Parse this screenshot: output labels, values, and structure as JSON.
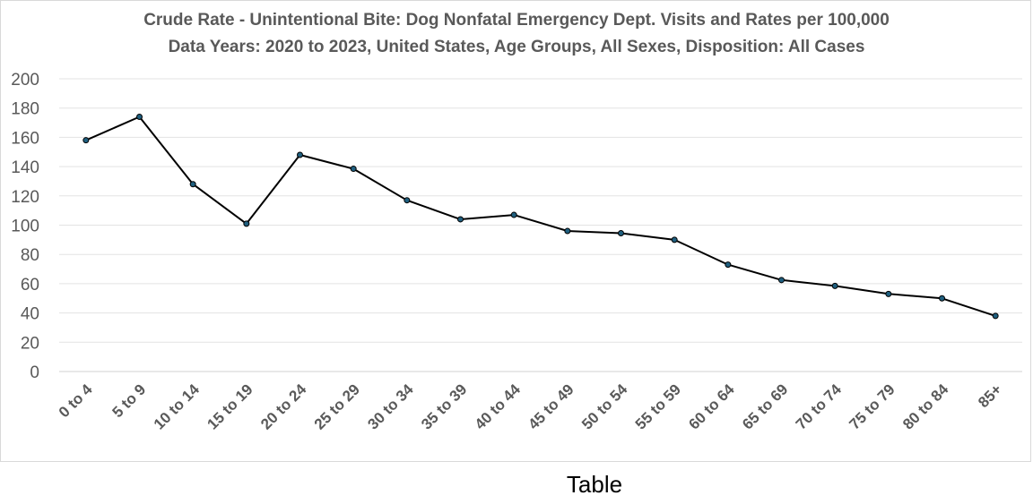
{
  "chart_data": {
    "type": "line",
    "title": "Crude Rate - Unintentional Bite: Dog Nonfatal Emergency Dept. Visits and Rates per 100,000",
    "subtitle": "Data Years: 2020 to 2023, United States,  Age Groups, All Sexes, Disposition: All Cases",
    "categories": [
      "0 to 4",
      "5 to 9",
      "10 to 14",
      "15 to 19",
      "20 to 24",
      "25 to 29",
      "30 to 34",
      "35 to 39",
      "40 to 44",
      "45 to 49",
      "50 to 54",
      "55 to 59",
      "60 to 64",
      "65 to 69",
      "70 to 74",
      "75 to 79",
      "80 to 84",
      "85+"
    ],
    "values": [
      158,
      174,
      128,
      101,
      148,
      138.5,
      117,
      104,
      107,
      96,
      94.5,
      90,
      73,
      62.5,
      58.5,
      53,
      50,
      38
    ],
    "ylim": [
      0,
      200
    ],
    "yticks": [
      0,
      20,
      40,
      60,
      80,
      100,
      120,
      140,
      160,
      180,
      200
    ],
    "grid": true,
    "legend": "none",
    "line_color": "#000000",
    "marker_color": "#1f5f7f"
  },
  "caption": "Table"
}
